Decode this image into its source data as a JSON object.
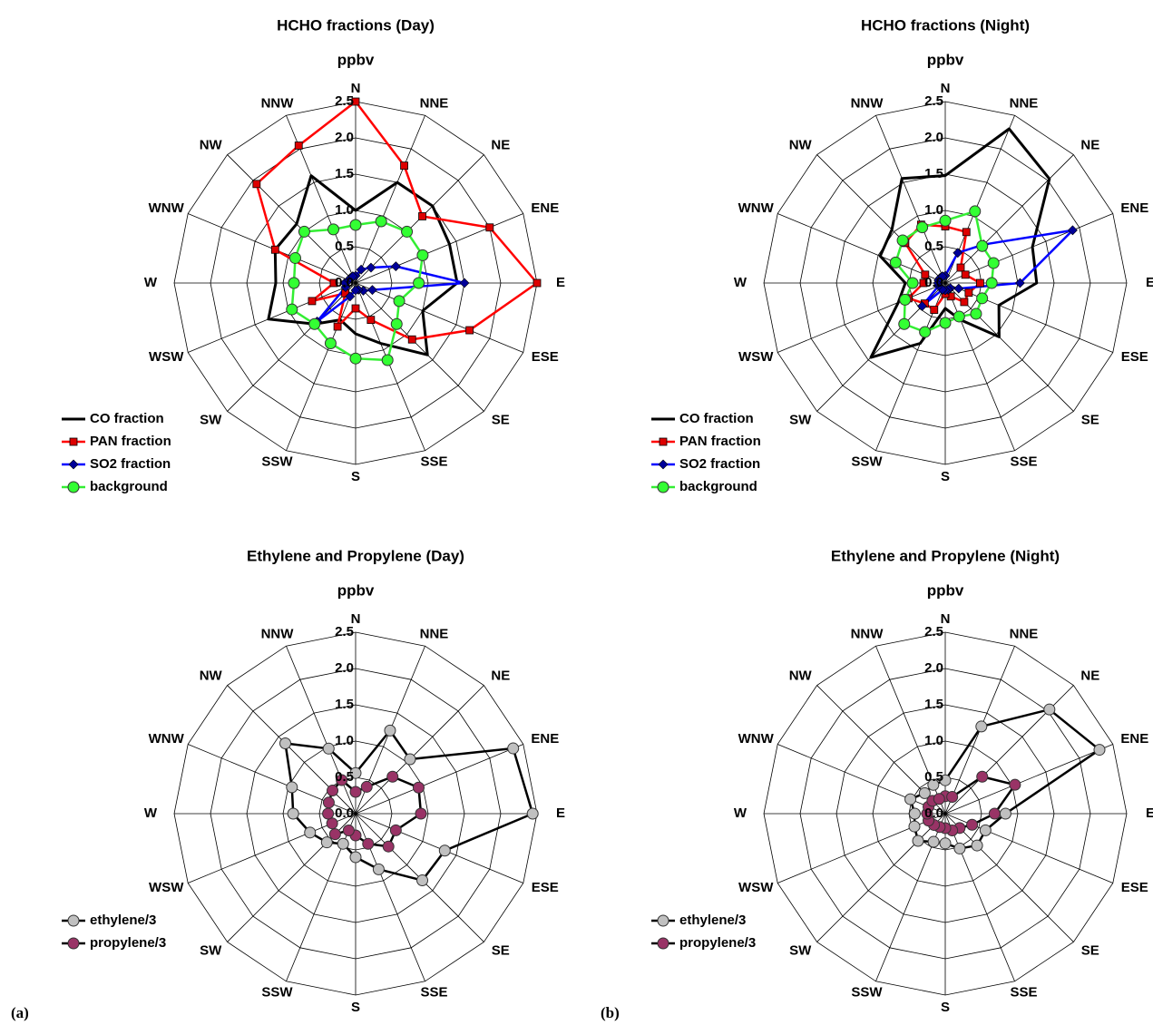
{
  "chart_data": [
    {
      "type": "radar",
      "title": "HCHO fractions (Day)",
      "subtitle": "ppbv",
      "categories": [
        "N",
        "NNE",
        "NE",
        "ENE",
        "E",
        "ESE",
        "SE",
        "SSE",
        "S",
        "SSW",
        "SW",
        "WSW",
        "W",
        "WNW",
        "NW",
        "NNW"
      ],
      "rlim": [
        0,
        2.5
      ],
      "rticks": [
        {
          "value": 0,
          "label": "0.0"
        },
        0.5,
        {
          "value": 1,
          "label": "1.0"
        },
        1.5,
        {
          "value": 2,
          "label": "2.0"
        },
        2.5
      ],
      "legend": "lower left",
      "series": [
        {
          "name": "CO fraction",
          "color": "#000000",
          "marker": "none",
          "marker_color": "#000000",
          "values": [
            1.0,
            1.5,
            1.5,
            1.4,
            1.4,
            1.0,
            1.4,
            0.9,
            0.7,
            0.55,
            0.8,
            1.3,
            1.1,
            1.2,
            1.15,
            1.6
          ]
        },
        {
          "name": "PAN fraction",
          "color": "#ff0000",
          "marker": "square",
          "marker_color": "#dd0000",
          "values": [
            2.5,
            1.75,
            1.3,
            2.0,
            2.5,
            1.7,
            1.1,
            0.55,
            0.35,
            0.65,
            0.2,
            0.65,
            0.3,
            1.2,
            1.93,
            2.05
          ]
        },
        {
          "name": "SO2 fraction",
          "color": "#0000ff",
          "marker": "diamond",
          "marker_color": "#000099",
          "values": [
            0.1,
            0.2,
            0.3,
            0.6,
            1.5,
            0.25,
            0.15,
            0.1,
            0.1,
            0.2,
            0.75,
            0.15,
            0.15,
            0.1,
            0.1,
            0.1
          ]
        },
        {
          "name": "background",
          "color": "#33ee33",
          "marker": "circle",
          "marker_color": "#33ff33",
          "values": [
            0.8,
            0.92,
            1.0,
            1.0,
            0.87,
            0.65,
            0.8,
            1.15,
            1.04,
            0.9,
            0.8,
            0.95,
            0.85,
            0.9,
            1.0,
            0.8
          ]
        }
      ]
    },
    {
      "type": "radar",
      "title": "HCHO fractions (Night)",
      "subtitle": "ppbv",
      "categories": [
        "N",
        "NNE",
        "NE",
        "ENE",
        "E",
        "ESE",
        "SE",
        "SSE",
        "S",
        "SSW",
        "SW",
        "WSW",
        "W",
        "WNW",
        "NW",
        "NNW"
      ],
      "rlim": [
        0,
        2.5
      ],
      "rticks": [
        {
          "value": 0,
          "label": "0.0"
        },
        0.5,
        {
          "value": 1,
          "label": "1.0"
        },
        1.5,
        {
          "value": 2,
          "label": "2.0"
        },
        2.5
      ],
      "legend": "lower left",
      "series": [
        {
          "name": "CO fraction",
          "color": "#000000",
          "marker": "none",
          "marker_color": "#000000",
          "values": [
            1.48,
            2.3,
            2.03,
            1.3,
            1.26,
            0.8,
            1.05,
            0.55,
            0.35,
            0.9,
            1.45,
            0.7,
            0.55,
            0.97,
            1.04,
            1.56
          ]
        },
        {
          "name": "PAN fraction",
          "color": "#ff0000",
          "marker": "square",
          "marker_color": "#dd0000",
          "values": [
            0.78,
            0.76,
            0.3,
            0.3,
            0.48,
            0.35,
            0.37,
            0.2,
            0.15,
            0.4,
            0.4,
            0.55,
            0.3,
            0.3,
            0.78,
            0.87
          ]
        },
        {
          "name": "SO2 fraction",
          "color": "#0000ff",
          "marker": "diamond",
          "marker_color": "#000099",
          "values": [
            0.1,
            0.45,
            0.75,
            1.9,
            1.03,
            0.2,
            0.1,
            0.1,
            0.1,
            0.1,
            0.45,
            0.1,
            0.1,
            0.1,
            0.1,
            0.1
          ]
        },
        {
          "name": "background",
          "color": "#33ee33",
          "marker": "circle",
          "marker_color": "#33ff33",
          "values": [
            0.86,
            1.07,
            0.72,
            0.72,
            0.64,
            0.55,
            0.6,
            0.5,
            0.55,
            0.73,
            0.8,
            0.6,
            0.45,
            0.74,
            0.83,
            0.83
          ]
        }
      ]
    },
    {
      "type": "radar",
      "title": "Ethylene and Propylene (Day)",
      "subtitle": "ppbv",
      "categories": [
        "N",
        "NNE",
        "NE",
        "ENE",
        "E",
        "ESE",
        "SE",
        "SSE",
        "S",
        "SSW",
        "SW",
        "WSW",
        "W",
        "WNW",
        "NW",
        "NNW"
      ],
      "rlim": [
        0,
        2.5
      ],
      "rticks": [
        {
          "value": 0,
          "label": "0.0"
        },
        0.5,
        {
          "value": 1,
          "label": "1.0"
        },
        1.5,
        {
          "value": 2,
          "label": "2.0"
        },
        2.5
      ],
      "legend": "lower left",
      "series": [
        {
          "name": "ethylene/3",
          "color": "#000000",
          "marker": "circle",
          "marker_color": "#c0c0c0",
          "values": [
            0.56,
            1.24,
            1.06,
            2.35,
            2.44,
            1.33,
            1.3,
            0.83,
            0.6,
            0.45,
            0.56,
            0.68,
            0.86,
            0.95,
            1.37,
            0.97
          ]
        },
        {
          "name": "propylene/3",
          "color": "#000000",
          "marker": "circle",
          "marker_color": "#993366",
          "values": [
            0.3,
            0.4,
            0.72,
            0.94,
            0.9,
            0.6,
            0.64,
            0.45,
            0.3,
            0.25,
            0.4,
            0.35,
            0.38,
            0.4,
            0.45,
            0.5
          ]
        }
      ]
    },
    {
      "type": "radar",
      "title": "Ethylene and Propylene (Night)",
      "subtitle": "ppbv",
      "categories": [
        "N",
        "NNE",
        "NE",
        "ENE",
        "E",
        "ESE",
        "SE",
        "SSE",
        "S",
        "SSW",
        "SW",
        "WSW",
        "W",
        "WNW",
        "NW",
        "NNW"
      ],
      "rlim": [
        0,
        2.5
      ],
      "rticks": [
        {
          "value": 0,
          "label": "0.0"
        },
        0.5,
        {
          "value": 1,
          "label": "1.0"
        },
        1.5,
        {
          "value": 2,
          "label": "2.0"
        },
        2.5
      ],
      "legend": "lower left",
      "series": [
        {
          "name": "ethylene/3",
          "color": "#000000",
          "marker": "circle",
          "marker_color": "#c0c0c0",
          "values": [
            0.46,
            1.3,
            2.03,
            2.3,
            0.83,
            0.6,
            0.62,
            0.52,
            0.41,
            0.42,
            0.53,
            0.46,
            0.42,
            0.52,
            0.4,
            0.43
          ]
        },
        {
          "name": "propylene/3",
          "color": "#000000",
          "marker": "circle",
          "marker_color": "#993366",
          "values": [
            0.24,
            0.25,
            0.72,
            1.04,
            0.68,
            0.4,
            0.28,
            0.25,
            0.2,
            0.2,
            0.22,
            0.25,
            0.25,
            0.25,
            0.25,
            0.22
          ]
        }
      ]
    }
  ],
  "panel_labels": [
    "(a)",
    "(b)"
  ]
}
